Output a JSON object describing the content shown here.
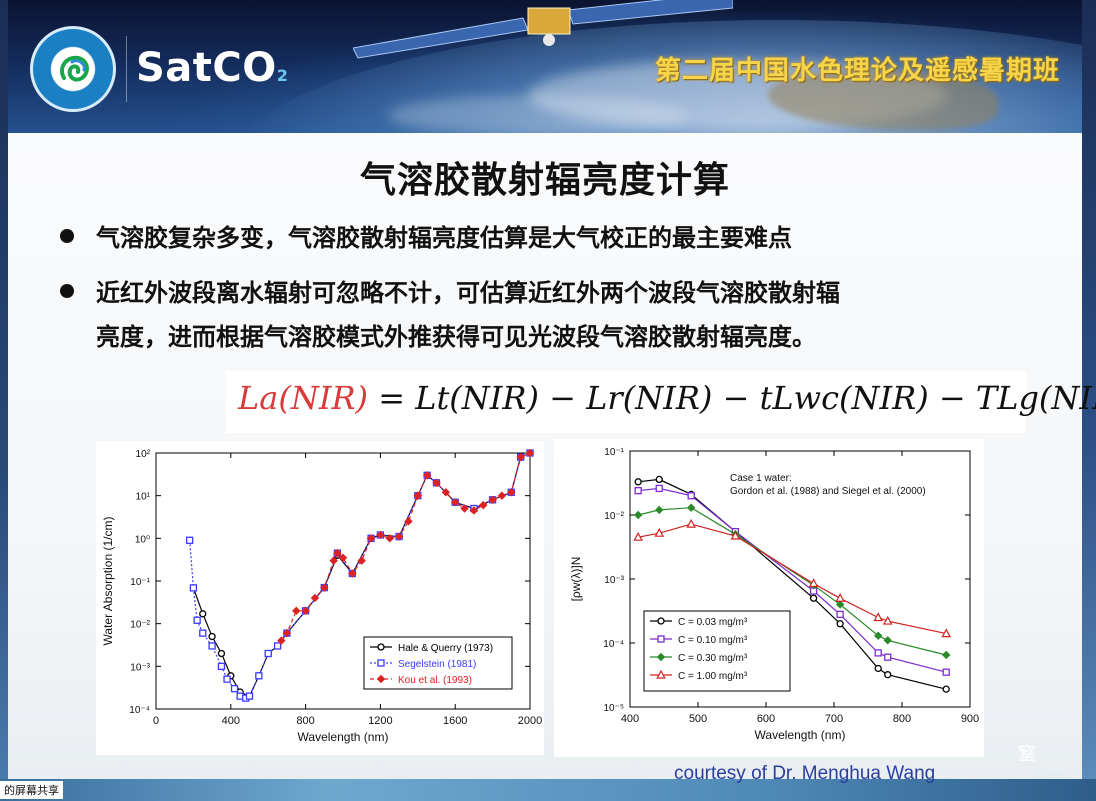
{
  "header": {
    "logo_text": "SatCO",
    "logo_sub": "2",
    "course_title": "第二届中国水色理论及遥感暑期班"
  },
  "slide": {
    "title": "气溶胶散射辐亮度计算",
    "bullet1": "气溶胶复杂多变，气溶胶散射辐亮度估算是大气校正的最主要难点",
    "bullet2_line1": "近红外波段离水辐射可忽略不计，可估算近红外两个波段气溶胶散射辐",
    "bullet2_line2": "亮度，进而根据气溶胶模式外推获得可见光波段气溶胶散射辐亮度。",
    "formula": {
      "lhs": "La(NIR)",
      "rhs": "= Lt(NIR) − Lr(NIR) − tLwc(NIR) − TLg(NIR)"
    },
    "courtesy": "courtesy of Dr. Menghua Wang"
  },
  "chart_data": [
    {
      "type": "line",
      "xlabel": "Wavelength (nm)",
      "ylabel": "Water Absorption (1/cm)",
      "xlim": [
        0,
        2000
      ],
      "ylim": [
        0.0001,
        100
      ],
      "yscale": "log",
      "xticks": [
        "0",
        "400",
        "800",
        "1200",
        "1600",
        "2000"
      ],
      "yticks": [
        "10⁻⁴",
        "10⁻³",
        "10⁻²",
        "10⁻¹",
        "10⁰",
        "10¹",
        "10²"
      ],
      "legend_position": "bottom-right",
      "series": [
        {
          "name": "Hale & Querry (1973)",
          "color": "#000000",
          "x": [
            200,
            250,
            300,
            350,
            400,
            450,
            500,
            550,
            600,
            650,
            700,
            800,
            900,
            970,
            1050,
            1150,
            1200,
            1300,
            1400,
            1450,
            1500,
            1600,
            1700,
            1800,
            1900,
            1950,
            2000
          ],
          "y": [
            0.069,
            0.017,
            0.005,
            0.002,
            0.0006,
            0.00025,
            0.0002,
            0.0006,
            0.002,
            0.003,
            0.006,
            0.02,
            0.07,
            0.4,
            0.15,
            1.0,
            1.2,
            1.1,
            10,
            30,
            20,
            7,
            5,
            8,
            12,
            80,
            100
          ]
        },
        {
          "name": "Segelstein (1981)",
          "color": "#3a3aff",
          "x": [
            180,
            200,
            220,
            250,
            300,
            350,
            380,
            420,
            450,
            480,
            500,
            550,
            600,
            650,
            700,
            800,
            900,
            970,
            1050,
            1150,
            1200,
            1300,
            1400,
            1450,
            1500,
            1600,
            1700,
            1800,
            1900,
            1950,
            2000
          ],
          "y": [
            0.9,
            0.069,
            0.012,
            0.006,
            0.003,
            0.001,
            0.0005,
            0.0003,
            0.0002,
            0.00018,
            0.0002,
            0.0006,
            0.002,
            0.003,
            0.006,
            0.02,
            0.07,
            0.45,
            0.15,
            1.0,
            1.2,
            1.1,
            10,
            30,
            20,
            7,
            5,
            8,
            12,
            80,
            100
          ]
        },
        {
          "name": "Kou et al. (1993)",
          "color": "#dd2222",
          "x": [
            670,
            700,
            750,
            800,
            850,
            900,
            950,
            970,
            1000,
            1050,
            1100,
            1150,
            1200,
            1250,
            1300,
            1350,
            1400,
            1450,
            1500,
            1550,
            1600,
            1650,
            1700,
            1750,
            1800,
            1850,
            1900,
            1950,
            2000
          ],
          "y": [
            0.004,
            0.006,
            0.02,
            0.02,
            0.04,
            0.07,
            0.3,
            0.45,
            0.35,
            0.15,
            0.3,
            1.0,
            1.2,
            1.0,
            1.1,
            2.5,
            10,
            30,
            20,
            12,
            7,
            5,
            4.5,
            6,
            8,
            10,
            12,
            80,
            100
          ]
        }
      ]
    },
    {
      "type": "line",
      "xlabel": "Wavelength (nm)",
      "ylabel": "[ρw(λ)]N",
      "xlim": [
        400,
        900
      ],
      "ylim": [
        1e-05,
        0.1
      ],
      "yscale": "log",
      "xticks": [
        "400",
        "500",
        "600",
        "700",
        "800",
        "900"
      ],
      "yticks": [
        "10⁻⁵",
        "10⁻⁴",
        "10⁻³",
        "10⁻²",
        "10⁻¹"
      ],
      "annotation_line1": "Case 1 water:",
      "annotation_line2": "Gordon et al. (1988) and Siegel et al. (2000)",
      "legend_position": "bottom-left",
      "x": [
        412,
        443,
        490,
        555,
        670,
        709,
        765,
        779,
        865
      ],
      "series": [
        {
          "name": "C = 0.03 mg/m³",
          "color": "#000000",
          "marker": "circle",
          "y": [
            0.033,
            0.036,
            0.021,
            0.0055,
            0.0005,
            0.0002,
            4e-05,
            3.2e-05,
            1.9e-05
          ]
        },
        {
          "name": "C = 0.10 mg/m³",
          "color": "#7b2ccf",
          "marker": "square",
          "y": [
            0.024,
            0.026,
            0.02,
            0.0055,
            0.00065,
            0.00028,
            7e-05,
            6e-05,
            3.5e-05
          ]
        },
        {
          "name": "C = 0.30 mg/m³",
          "color": "#2a8a2a",
          "marker": "diamond",
          "y": [
            0.01,
            0.012,
            0.013,
            0.005,
            0.0008,
            0.0004,
            0.00013,
            0.00011,
            6.5e-05
          ]
        },
        {
          "name": "C = 1.00 mg/m³",
          "color": "#d02020",
          "marker": "triangle",
          "y": [
            0.0045,
            0.0052,
            0.0072,
            0.0047,
            0.00085,
            0.0005,
            0.00025,
            0.00022,
            0.00014
          ]
        }
      ]
    }
  ],
  "overlay": {
    "share_tag": "的屏幕共享"
  }
}
